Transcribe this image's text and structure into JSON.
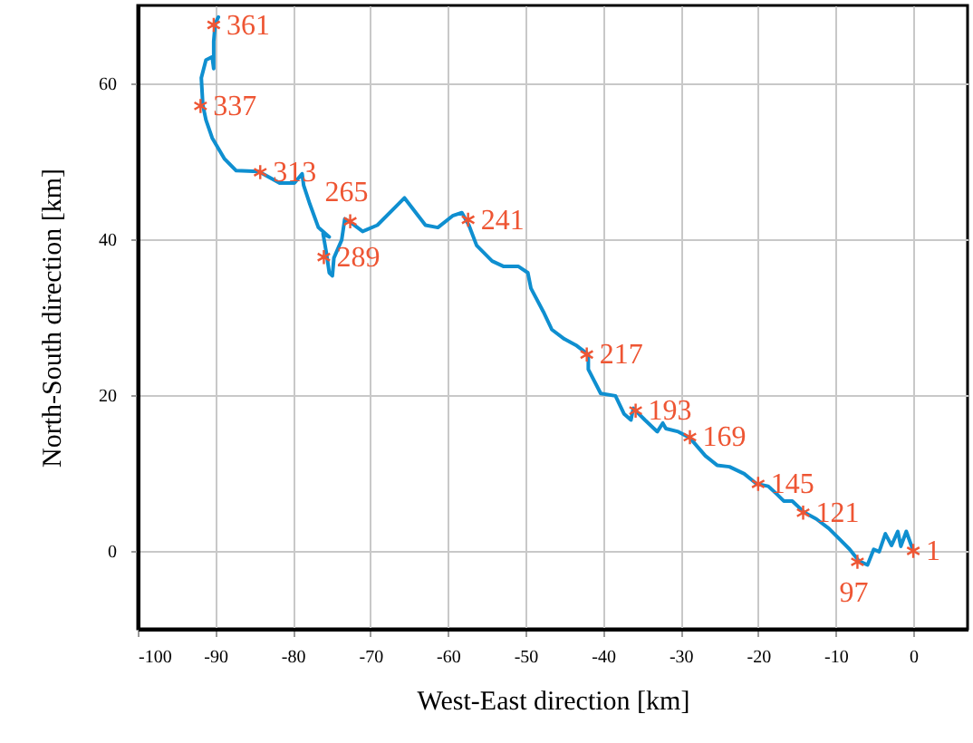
{
  "chart_data": {
    "type": "line",
    "xlabel": "West-East direction [km]",
    "ylabel": "North-South direction [km]",
    "xlim": [
      -100,
      7
    ],
    "ylim": [
      -10,
      70
    ],
    "xticks": [
      -100,
      -90,
      -80,
      -70,
      -60,
      -50,
      -40,
      -30,
      -20,
      -10,
      0
    ],
    "yticks": [
      0,
      20,
      40,
      60
    ],
    "grid": true,
    "series": [
      {
        "color": "#0f8fd0",
        "x": [
          0,
          -0.9,
          -1.6,
          -2,
          -2.8,
          -3.6,
          -4.4,
          -5.1,
          -5.9,
          -7,
          -8.2,
          -9.4,
          -10.9,
          -12.5,
          -14,
          -15.6,
          -16.7,
          -17.5,
          -18.7,
          -20.2,
          -21.8,
          -23.7,
          -25.3,
          -26.8,
          -28.8,
          -30.3,
          -31.9,
          -32.3,
          -33,
          -34.6,
          -36.1,
          -36.4,
          -37.3,
          -38.4,
          -40.3,
          -41.9,
          -41.9,
          -43.5,
          -45,
          -46.6,
          -47.7,
          -49.3,
          -49.7,
          -50.9,
          -52.8,
          -54.3,
          -56.3,
          -57.3,
          -58.2,
          -59.4,
          -61.3,
          -62.9,
          -65.6,
          -66.7,
          -69.1,
          -71,
          -72.6,
          -73.3,
          -73.7,
          -74.7,
          -74.9,
          -75.3,
          -75.7,
          -76.1,
          -75.3,
          -76.7,
          -77.8,
          -78.6,
          -78.8,
          -79.8,
          -81.7,
          -84.4,
          -87.3,
          -88.8,
          -90.4,
          -91.2,
          -91.6,
          -91.8,
          -91.2,
          -90.4,
          -90.2,
          -90.2,
          -90,
          -89.6
        ],
        "values": [
          0,
          2.5,
          0.6,
          2.5,
          0.7,
          2.2,
          -0.1,
          0.2,
          -1.8,
          -1.3,
          0.2,
          1.4,
          2.9,
          4.1,
          4.9,
          6.4,
          6.4,
          7.2,
          8.3,
          8.6,
          9.9,
          10.8,
          11,
          12.2,
          14.5,
          15.3,
          15.7,
          16.4,
          15.3,
          16.8,
          18.3,
          16.8,
          17.6,
          19.9,
          20.2,
          23.3,
          25.2,
          26.4,
          27.2,
          28.4,
          30.7,
          33.7,
          35.7,
          36.5,
          36.5,
          37.2,
          39.2,
          41.8,
          43.4,
          43,
          41.5,
          41.8,
          45.3,
          44.2,
          41.8,
          41,
          42.2,
          42.6,
          39.9,
          37.6,
          35.3,
          35.7,
          38.4,
          40.7,
          40.3,
          41.5,
          44.5,
          46.9,
          48.4,
          47.2,
          47.2,
          48.7,
          48.8,
          50.3,
          53,
          55.3,
          57.2,
          60.7,
          63,
          63.4,
          61.9,
          65.4,
          67.7,
          68.5
        ]
      },
      {
        "type": "scatter",
        "color": "#ee5533",
        "marker": "cross",
        "x": [
          0,
          -7.2,
          -14.2,
          -20,
          -28.8,
          -35.8,
          -42.1,
          -57.4,
          -72.6,
          -76,
          -84.2,
          -91.9,
          -90.2
        ],
        "values": [
          0,
          -1.4,
          4.9,
          8.6,
          14.6,
          18,
          25.2,
          42.5,
          42.3,
          37.7,
          48.6,
          57.1,
          67.5
        ]
      }
    ],
    "annotations": [
      {
        "text": "1",
        "x": 0,
        "y": 0
      },
      {
        "text": "97",
        "x": -7.2,
        "y": -1.4
      },
      {
        "text": "121",
        "x": -14.2,
        "y": 4.9
      },
      {
        "text": "145",
        "x": -20,
        "y": 8.6
      },
      {
        "text": "169",
        "x": -28.8,
        "y": 14.6
      },
      {
        "text": "193",
        "x": -35.8,
        "y": 18
      },
      {
        "text": "217",
        "x": -42.1,
        "y": 25.2
      },
      {
        "text": "241",
        "x": -57.4,
        "y": 42.5
      },
      {
        "text": "265",
        "x": -72.6,
        "y": 42.3
      },
      {
        "text": "289",
        "x": -76,
        "y": 37.7
      },
      {
        "text": "313",
        "x": -84.2,
        "y": 48.6
      },
      {
        "text": "337",
        "x": -91.9,
        "y": 57.1
      },
      {
        "text": "361",
        "x": -90.2,
        "y": 67.5
      }
    ]
  }
}
